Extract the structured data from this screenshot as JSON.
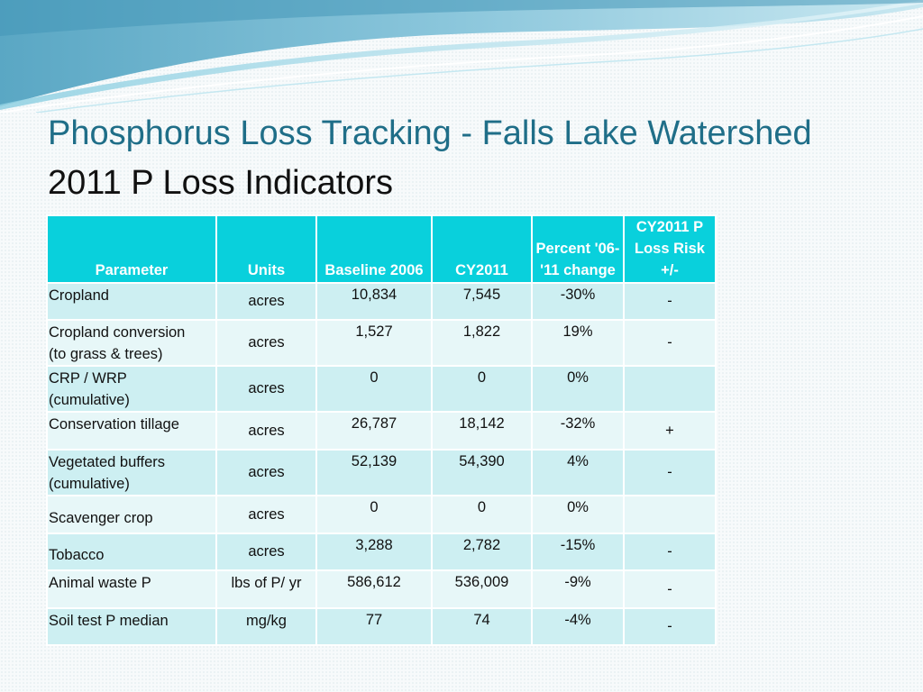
{
  "slide": {
    "title_line1": "Phosphorus Loss Tracking - Falls Lake Watershed",
    "title_line2": "2011 P Loss Indicators"
  },
  "table": {
    "headers": {
      "parameter": "Parameter",
      "units": "Units",
      "baseline": "Baseline 2006",
      "cy2011": "CY2011",
      "pct_line1": "Percent '06-",
      "pct_line2": "'11 change",
      "risk_line1": "CY2011 P",
      "risk_line2": "Loss Risk",
      "risk_line3": "+/-"
    },
    "rows": [
      {
        "param_line1": "Cropland",
        "param_line2": "",
        "units": "acres",
        "baseline": "10,834",
        "cy2011": "7,545",
        "pct": "-30%",
        "risk": "-"
      },
      {
        "param_line1": "Cropland conversion",
        "param_line2": "(to grass & trees)",
        "units": "acres",
        "baseline": "1,527",
        "cy2011": "1,822",
        "pct": "19%",
        "risk": "-"
      },
      {
        "param_line1": "CRP / WRP",
        "param_line2": "(cumulative)",
        "units": "acres",
        "baseline": "0",
        "cy2011": "0",
        "pct": "0%",
        "risk": ""
      },
      {
        "param_line1": "Conservation tillage",
        "param_line2": "",
        "units": "acres",
        "baseline": "26,787",
        "cy2011": "18,142",
        "pct": "-32%",
        "risk": "+"
      },
      {
        "param_line1": "Vegetated buffers",
        "param_line2": "(cumulative)",
        "units": "acres",
        "baseline": "52,139",
        "cy2011": "54,390",
        "pct": "4%",
        "risk": "-"
      },
      {
        "param_line1": "Scavenger crop",
        "param_line2": "",
        "units": "acres",
        "baseline": "0",
        "cy2011": "0",
        "pct": "0%",
        "risk": ""
      },
      {
        "param_line1": "Tobacco",
        "param_line2": "",
        "units": "acres",
        "baseline": "3,288",
        "cy2011": "2,782",
        "pct": "-15%",
        "risk": "-"
      },
      {
        "param_line1": "Animal waste P",
        "param_line2": "",
        "units": "lbs of P/ yr",
        "baseline": "586,612",
        "cy2011": "536,009",
        "pct": "-9%",
        "risk": "-"
      },
      {
        "param_line1": "Soil test P median",
        "param_line2": "",
        "units": "mg/kg",
        "baseline": "77",
        "cy2011": "74",
        "pct": "-4%",
        "risk": "-"
      }
    ]
  },
  "colors": {
    "title_accent": "#1f6e88",
    "header_fill": "#09d0dc",
    "row_dark": "#cdeff2",
    "row_light": "#e7f7f8"
  }
}
